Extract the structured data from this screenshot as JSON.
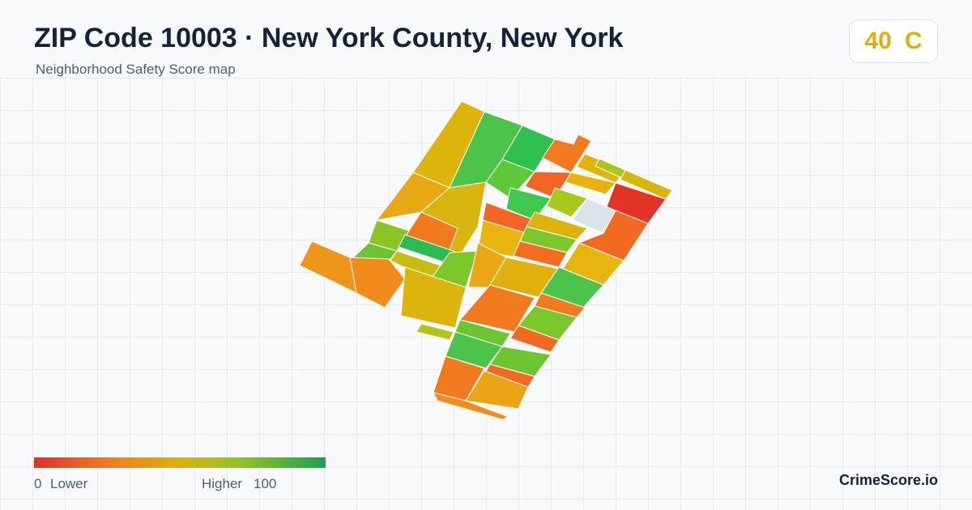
{
  "header": {
    "title": "ZIP Code 10003 · New York County, New York",
    "subtitle": "Neighborhood Safety Score map"
  },
  "score": {
    "value": 40,
    "grade": "C"
  },
  "legend": {
    "min": 0,
    "min_label": "Lower",
    "max_label": "Higher",
    "max": 100
  },
  "brand": "CrimeScore.io"
}
